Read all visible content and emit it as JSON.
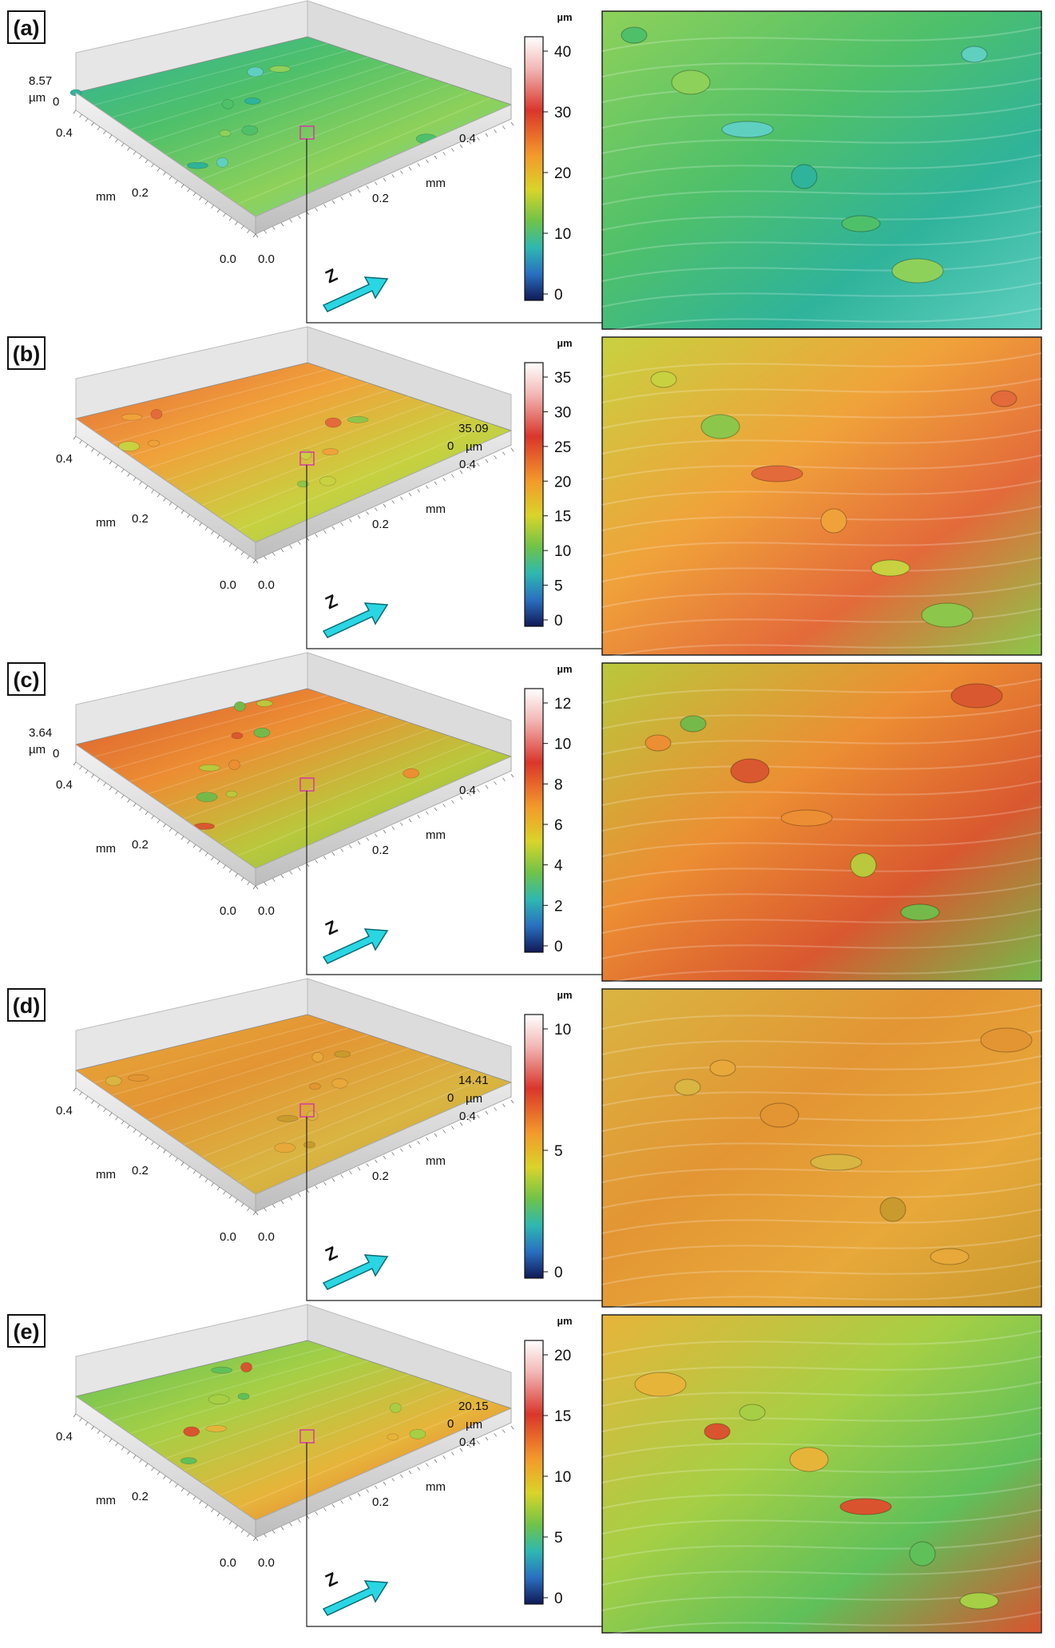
{
  "panels": [
    {
      "label": "(a)",
      "axis": {
        "z_max": "8.57",
        "z_unit": "µm",
        "z_zero": "0",
        "y_tick_hi": "0.4",
        "y_tick_mid": "0.2",
        "y_tick_lo": "0.0",
        "y_unit": "mm",
        "x_tick_lo": "0.0",
        "x_tick_mid": "0.2",
        "x_tick_hi": "0.4",
        "x_unit": "mm"
      },
      "zoom_bbox_side": "left",
      "direction_label": "Z",
      "colorbar": {
        "unit": "µm",
        "ticks": [
          "40",
          "30",
          "20",
          "10",
          "0"
        ]
      },
      "surface_colors": [
        "#2fb39a",
        "#4fc06a",
        "#8ed15a",
        "#5fd0c0"
      ]
    },
    {
      "label": "(b)",
      "axis": {
        "z_max": "35.09",
        "z_unit": "µm",
        "z_zero": "0",
        "y_tick_hi": "0.4",
        "y_tick_mid": "0.2",
        "y_tick_lo": "0.0",
        "y_unit": "mm",
        "x_tick_lo": "0.0",
        "x_tick_mid": "0.2",
        "x_tick_hi": "0.4",
        "x_unit": "mm"
      },
      "zoom_bbox_side": "right",
      "direction_label": "Z",
      "colorbar": {
        "unit": "µm",
        "ticks": [
          "35",
          "30",
          "25",
          "20",
          "15",
          "10",
          "5",
          "0"
        ]
      },
      "surface_colors": [
        "#e36a3a",
        "#f0a23a",
        "#c8d140",
        "#8cc64a"
      ]
    },
    {
      "label": "(c)",
      "axis": {
        "z_max": "3.64",
        "z_unit": "µm",
        "z_zero": "0",
        "y_tick_hi": "0.4",
        "y_tick_mid": "0.2",
        "y_tick_lo": "0.0",
        "y_unit": "mm",
        "x_tick_lo": "0.0",
        "x_tick_mid": "0.2",
        "x_tick_hi": "0.4",
        "x_unit": "mm"
      },
      "zoom_bbox_side": "left",
      "direction_label": "Z",
      "colorbar": {
        "unit": "µm",
        "ticks": [
          "12",
          "10",
          "8",
          "6",
          "4",
          "2",
          "0"
        ]
      },
      "surface_colors": [
        "#d9582f",
        "#ec8e33",
        "#b9c83c",
        "#75b94a"
      ]
    },
    {
      "label": "(d)",
      "axis": {
        "z_max": "14.41",
        "z_unit": "µm",
        "z_zero": "0",
        "y_tick_hi": "0.4",
        "y_tick_mid": "0.2",
        "y_tick_lo": "0.0",
        "y_unit": "mm",
        "x_tick_lo": "0.0",
        "x_tick_mid": "0.2",
        "x_tick_hi": "0.4",
        "x_unit": "mm"
      },
      "zoom_bbox_side": "right",
      "direction_label": "Z",
      "colorbar": {
        "unit": "µm",
        "ticks": [
          "10",
          "5",
          "0"
        ]
      },
      "surface_colors": [
        "#e8a83a",
        "#e39533",
        "#d9b542",
        "#c99a2e"
      ]
    },
    {
      "label": "(e)",
      "axis": {
        "z_max": "20.15",
        "z_unit": "µm",
        "z_zero": "0",
        "y_tick_hi": "0.4",
        "y_tick_mid": "0.2",
        "y_tick_lo": "0.0",
        "y_unit": "mm",
        "x_tick_lo": "0.0",
        "x_tick_mid": "0.2",
        "x_tick_hi": "0.4",
        "x_unit": "mm"
      },
      "zoom_bbox_side": "right",
      "direction_label": "Z",
      "colorbar": {
        "unit": "µm",
        "ticks": [
          "20",
          "15",
          "10",
          "5",
          "0"
        ]
      },
      "surface_colors": [
        "#5fc05a",
        "#a6cf45",
        "#e7b43a",
        "#d9532f"
      ]
    }
  ],
  "colors": {
    "arrow": "#2ad6e3",
    "marker_box": "#d63aa0",
    "frame": "#222222",
    "colormap": [
      "#ffffff",
      "#f5c6c6",
      "#d9362b",
      "#f39a2b",
      "#d9d42a",
      "#6ec34a",
      "#2eb8b0",
      "#2a6fc0",
      "#101a55"
    ]
  }
}
